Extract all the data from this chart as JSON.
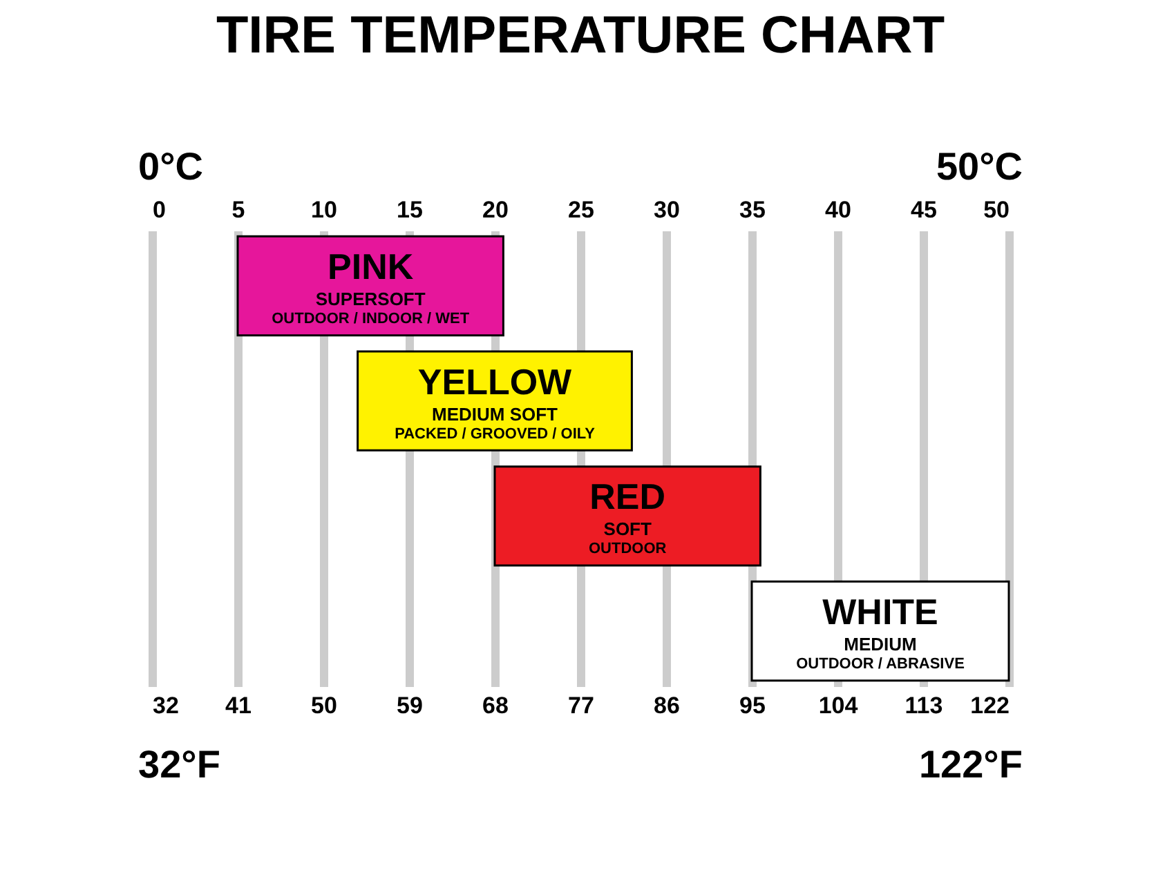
{
  "chart_data": {
    "type": "bar",
    "orientation": "horizontal",
    "title": "TIRE TEMPERATURE CHART",
    "categories": [
      "PINK",
      "YELLOW",
      "RED",
      "WHITE"
    ],
    "series": [
      {
        "axis": "x2",
        "values": [
          15.5,
          16,
          15.5,
          15
        ],
        "base": [
          5,
          12,
          20,
          35
        ],
        "colors": [
          "#e6169b",
          "#fff200",
          "#ed1c24",
          "#ffffff"
        ]
      }
    ],
    "x2lim": [
      0,
      50
    ],
    "x2ticks": [
      0,
      5,
      10,
      15,
      20,
      25,
      30,
      35,
      40,
      45,
      50
    ],
    "xlim": [
      32,
      122
    ],
    "xticks": [
      32,
      41,
      50,
      59,
      68,
      77,
      86,
      95,
      104,
      113,
      122
    ],
    "grid": "x2",
    "tick_labels": "x",
    "annotations": [
      "0°C",
      "50°C",
      "32°F",
      "122°F",
      "SUPERSOFT",
      "OUTDOOR / INDOOR / WET",
      "MEDIUM SOFT",
      "PACKED / GROOVED / OILY",
      "SOFT",
      "OUTDOOR",
      "MEDIUM",
      "OUTDOOR / ABRASIVE"
    ]
  }
}
